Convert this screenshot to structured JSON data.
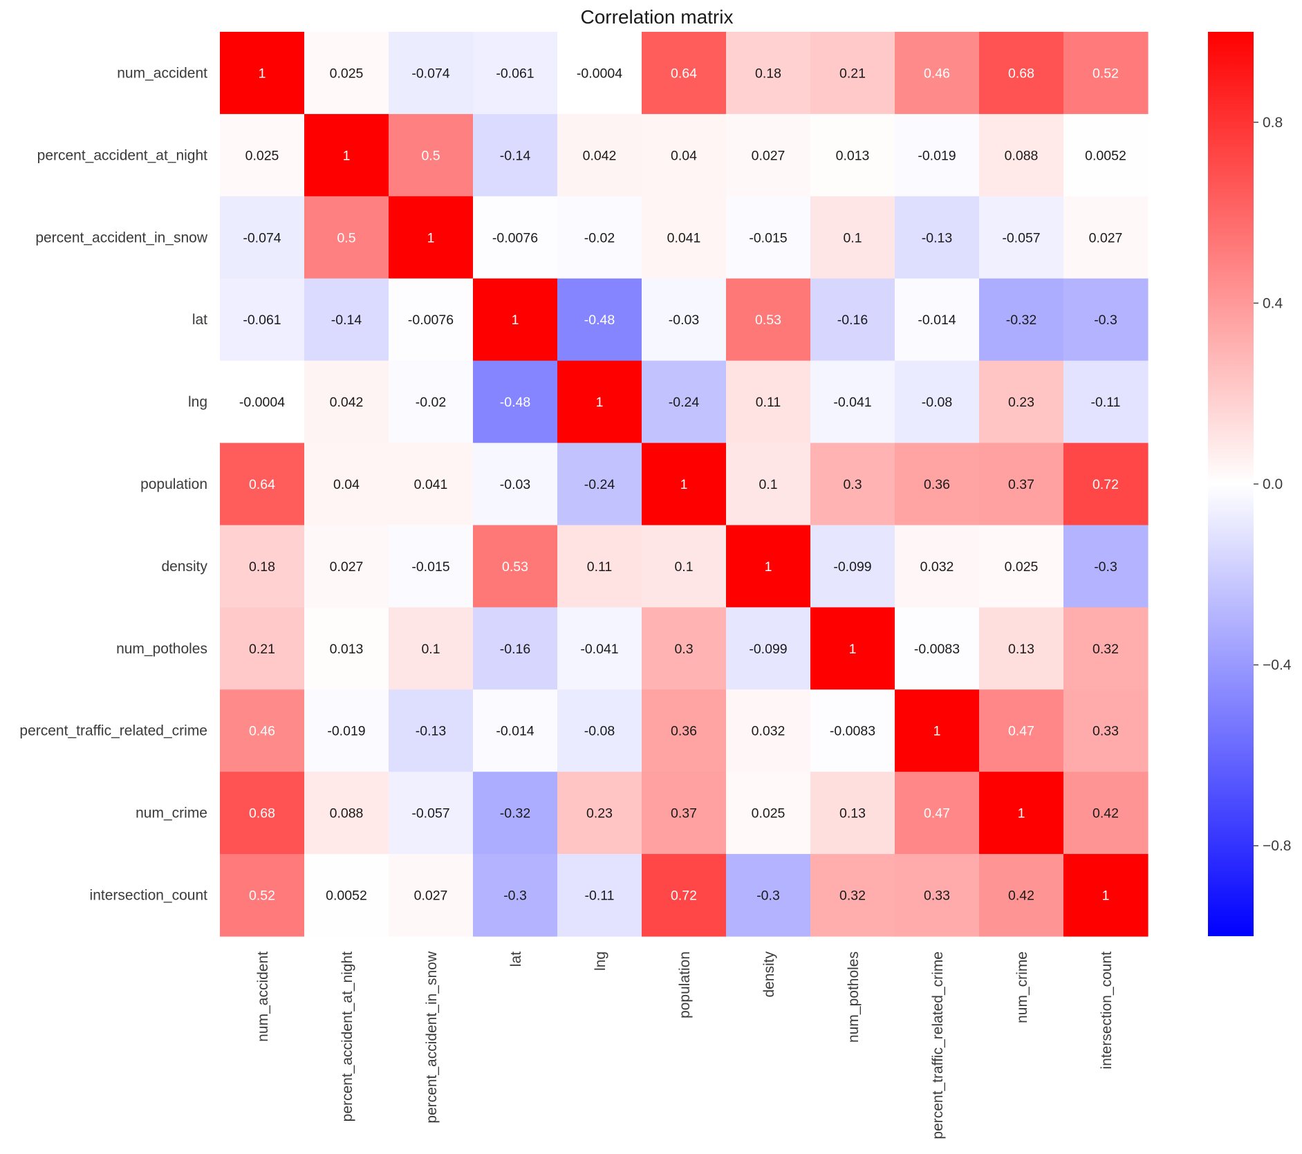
{
  "chart_data": {
    "type": "heatmap",
    "title": "Correlation matrix",
    "labels": [
      "num_accident",
      "percent_accident_at_night",
      "percent_accident_in_snow",
      "lat",
      "lng",
      "population",
      "density",
      "num_potholes",
      "percent_traffic_related_crime",
      "num_crime",
      "intersection_count"
    ],
    "values": [
      [
        1,
        0.025,
        -0.074,
        -0.061,
        -0.0004,
        0.64,
        0.18,
        0.21,
        0.46,
        0.68,
        0.52
      ],
      [
        0.025,
        1,
        0.5,
        -0.14,
        0.042,
        0.04,
        0.027,
        0.013,
        -0.019,
        0.088,
        0.0052
      ],
      [
        -0.074,
        0.5,
        1,
        -0.0076,
        -0.02,
        0.041,
        -0.015,
        0.1,
        -0.13,
        -0.057,
        0.027
      ],
      [
        -0.061,
        -0.14,
        -0.0076,
        1,
        -0.48,
        -0.03,
        0.53,
        -0.16,
        -0.014,
        -0.32,
        -0.3
      ],
      [
        -0.0004,
        0.042,
        -0.02,
        -0.48,
        1,
        -0.24,
        0.11,
        -0.041,
        -0.08,
        0.23,
        -0.11
      ],
      [
        0.64,
        0.04,
        0.041,
        -0.03,
        -0.24,
        1,
        0.1,
        0.3,
        0.36,
        0.37,
        0.72
      ],
      [
        0.18,
        0.027,
        -0.015,
        0.53,
        0.11,
        0.1,
        1,
        -0.099,
        0.032,
        0.025,
        -0.3
      ],
      [
        0.21,
        0.013,
        0.1,
        -0.16,
        -0.041,
        0.3,
        -0.099,
        1,
        -0.0083,
        0.13,
        0.32
      ],
      [
        0.46,
        -0.019,
        -0.13,
        -0.014,
        -0.08,
        0.36,
        0.032,
        -0.0083,
        1,
        0.47,
        0.33
      ],
      [
        0.68,
        0.088,
        -0.057,
        -0.32,
        0.23,
        0.37,
        0.025,
        0.13,
        0.47,
        1,
        0.42
      ],
      [
        0.52,
        0.0052,
        0.027,
        -0.3,
        -0.11,
        0.72,
        -0.3,
        0.32,
        0.33,
        0.42,
        1
      ]
    ],
    "colormap": "bwr",
    "colors": {
      "negative": "#0000ff",
      "zero": "#ffffff",
      "positive": "#ff0000"
    },
    "vmin": -1,
    "vmax": 1,
    "colorbar_ticks": [
      0.8,
      0.4,
      0.0,
      -0.4,
      -0.8
    ],
    "colorbar_tick_labels": [
      "0.8",
      "0.4",
      "0.0",
      "−0.4",
      "−0.8"
    ]
  }
}
